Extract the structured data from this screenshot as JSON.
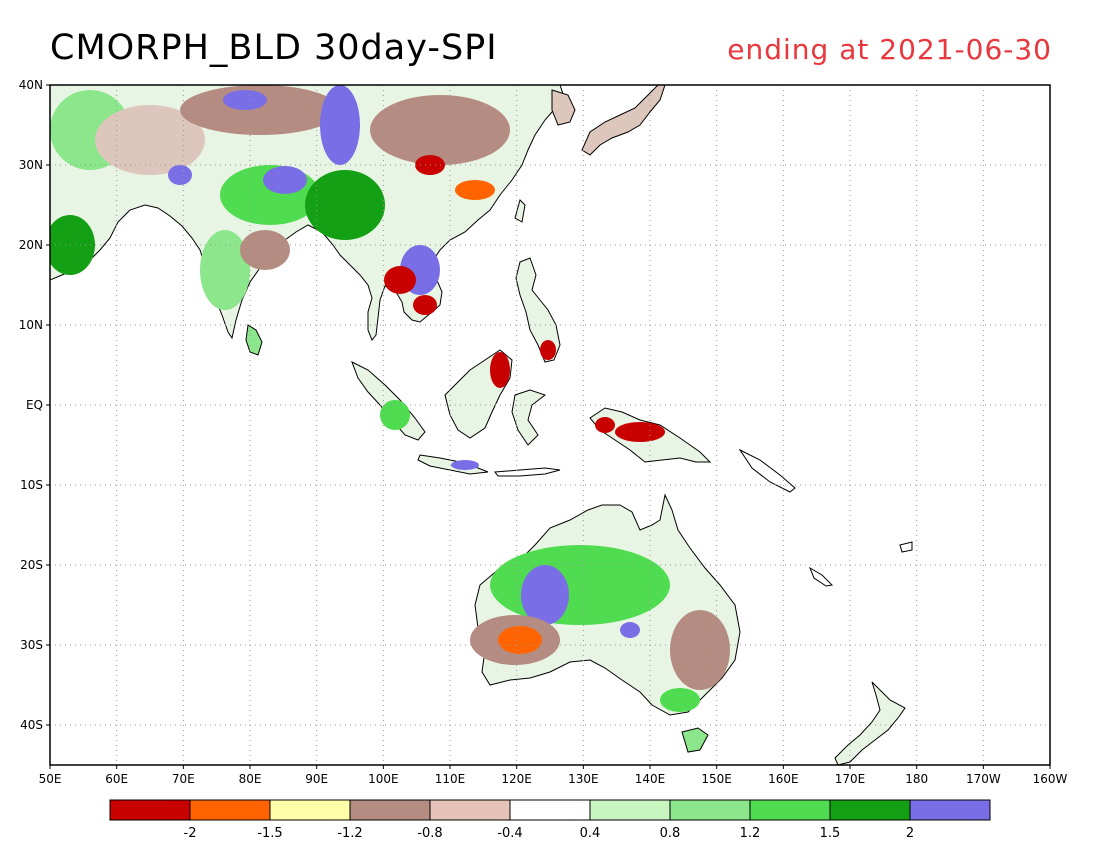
{
  "title": {
    "main": "CMORPH_BLD 30day-SPI",
    "date_text": "ending at 2021-06-30",
    "date_color": "#e8383d"
  },
  "map": {
    "lon_range": [
      50,
      200
    ],
    "lat_range": [
      -45,
      40
    ],
    "grid": "dotted",
    "lon_ticks": [
      {
        "value": 50,
        "label": "50E"
      },
      {
        "value": 60,
        "label": "60E"
      },
      {
        "value": 70,
        "label": "70E"
      },
      {
        "value": 80,
        "label": "80E"
      },
      {
        "value": 90,
        "label": "90E"
      },
      {
        "value": 100,
        "label": "100E"
      },
      {
        "value": 110,
        "label": "110E"
      },
      {
        "value": 120,
        "label": "120E"
      },
      {
        "value": 130,
        "label": "130E"
      },
      {
        "value": 140,
        "label": "140E"
      },
      {
        "value": 150,
        "label": "150E"
      },
      {
        "value": 160,
        "label": "160E"
      },
      {
        "value": 170,
        "label": "170E"
      },
      {
        "value": 180,
        "label": "180"
      },
      {
        "value": 190,
        "label": "170W"
      },
      {
        "value": 200,
        "label": "160W"
      }
    ],
    "lat_ticks": [
      {
        "value": 40,
        "label": "40N"
      },
      {
        "value": 30,
        "label": "30N"
      },
      {
        "value": 20,
        "label": "20N"
      },
      {
        "value": 10,
        "label": "10N"
      },
      {
        "value": 0,
        "label": "EQ"
      },
      {
        "value": -10,
        "label": "10S"
      },
      {
        "value": -20,
        "label": "20S"
      },
      {
        "value": -30,
        "label": "30S"
      },
      {
        "value": -40,
        "label": "40S"
      }
    ]
  },
  "colorbar": {
    "colors": [
      "#c80000",
      "#ff6400",
      "#ffffaa",
      "#b48c82",
      "#e6c3b9",
      "#ffffff",
      "#c8f5c0",
      "#8ce68c",
      "#50dc50",
      "#14a014",
      "#7a6ee6"
    ],
    "labels": [
      "-2",
      "-1.5",
      "-1.2",
      "-0.8",
      "-0.4",
      "0.4",
      "0.8",
      "1.2",
      "1.5",
      "2"
    ]
  }
}
